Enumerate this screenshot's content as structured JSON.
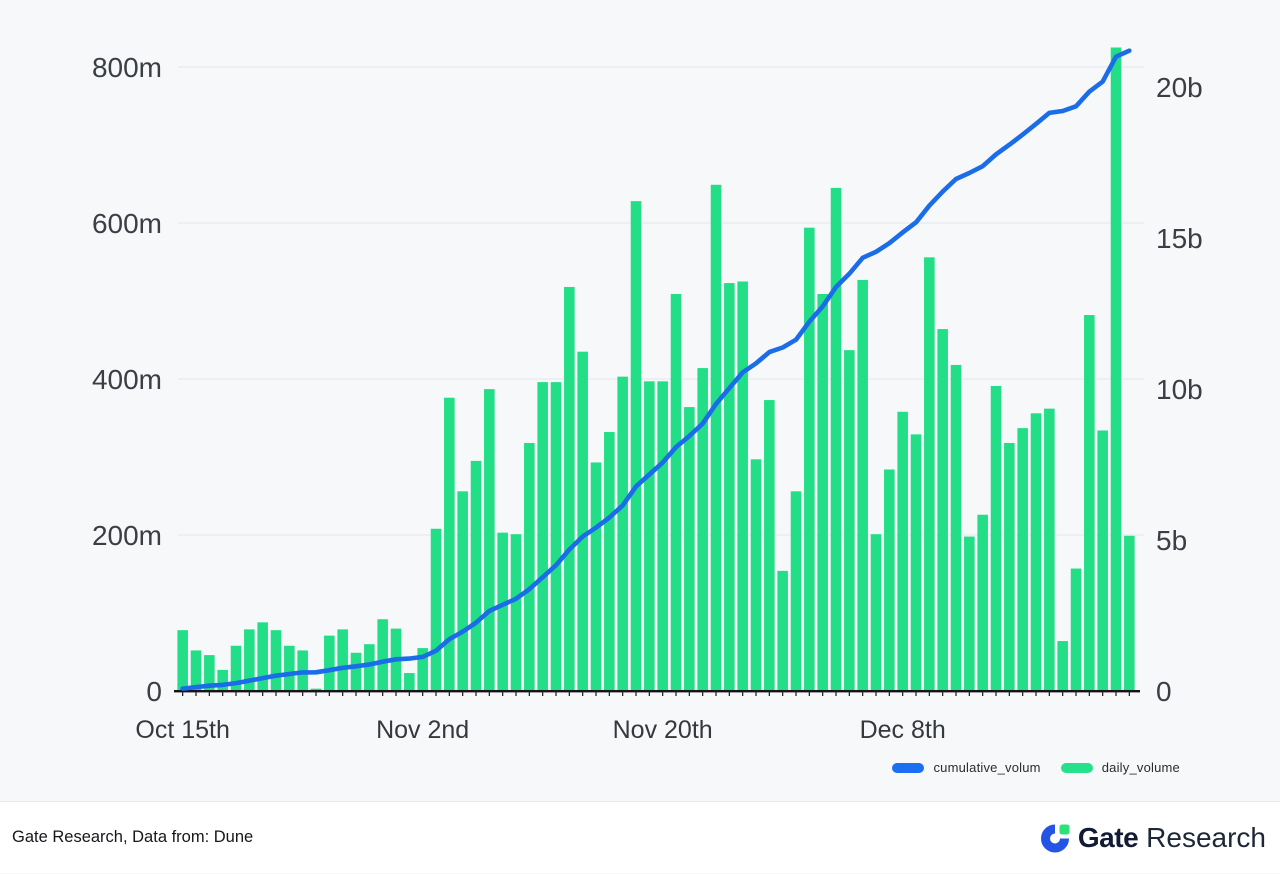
{
  "page": {
    "background": "#f7f8fa"
  },
  "chart_data": {
    "type": "combo",
    "title": "",
    "x": [
      "Oct 15",
      "Oct 16",
      "Oct 17",
      "Oct 18",
      "Oct 19",
      "Oct 20",
      "Oct 21",
      "Oct 22",
      "Oct 23",
      "Oct 24",
      "Oct 25",
      "Oct 26",
      "Oct 27",
      "Oct 28",
      "Oct 29",
      "Oct 30",
      "Oct 31",
      "Nov 1",
      "Nov 2",
      "Nov 3",
      "Nov 4",
      "Nov 5",
      "Nov 6",
      "Nov 7",
      "Nov 8",
      "Nov 9",
      "Nov 10",
      "Nov 11",
      "Nov 12",
      "Nov 13",
      "Nov 14",
      "Nov 15",
      "Nov 16",
      "Nov 17",
      "Nov 18",
      "Nov 19",
      "Nov 20",
      "Nov 21",
      "Nov 22",
      "Nov 23",
      "Nov 24",
      "Nov 25",
      "Nov 26",
      "Nov 27",
      "Nov 28",
      "Nov 29",
      "Nov 30",
      "Dec 1",
      "Dec 2",
      "Dec 3",
      "Dec 4",
      "Dec 5",
      "Dec 6",
      "Dec 7",
      "Dec 8",
      "Dec 9",
      "Dec 10",
      "Dec 11",
      "Dec 12",
      "Dec 13",
      "Dec 14",
      "Dec 15",
      "Dec 16",
      "Dec 17",
      "Dec 18",
      "Dec 19",
      "Dec 20",
      "Dec 21",
      "Dec 22",
      "Dec 23",
      "Dec 24",
      "Dec 25"
    ],
    "series": [
      {
        "name": "daily_volume",
        "kind": "bar",
        "axis": "left",
        "unit": "millions",
        "color": "#21DE87",
        "values": [
          78,
          52,
          46,
          27,
          58,
          79,
          88,
          78,
          58,
          52,
          3,
          71,
          79,
          49,
          60,
          92,
          80,
          23,
          55,
          208,
          376,
          256,
          295,
          387,
          203,
          201,
          318,
          396,
          396,
          518,
          435,
          293,
          332,
          403,
          628,
          397,
          397,
          509,
          364,
          414,
          649,
          523,
          525,
          297,
          373,
          154,
          256,
          594,
          509,
          645,
          437,
          527,
          201,
          284,
          358,
          329,
          556,
          464,
          418,
          198,
          226,
          391,
          318,
          337,
          356,
          362,
          64,
          157,
          482,
          334,
          825,
          199
        ]
      },
      {
        "name": "cumulative_volum",
        "kind": "line",
        "axis": "right",
        "unit": "millions",
        "color": "#1B6CE9",
        "values": [
          78,
          130,
          176,
          203,
          261,
          340,
          428,
          506,
          564,
          616,
          619,
          690,
          769,
          818,
          878,
          970,
          1050,
          1073,
          1128,
          1336,
          1712,
          1968,
          2263,
          2650,
          2853,
          3054,
          3372,
          3768,
          4164,
          4682,
          5117,
          5410,
          5742,
          6145,
          6773,
          7170,
          7567,
          8076,
          8440,
          8854,
          9503,
          10026,
          10551,
          10848,
          11221,
          11375,
          11631,
          12225,
          12734,
          13379,
          13816,
          14343,
          14544,
          14828,
          15186,
          15515,
          16071,
          16535,
          16953,
          17151,
          17377,
          17768,
          18086,
          18423,
          18779,
          19141,
          19205,
          19362,
          19844,
          20178,
          21003,
          21202
        ]
      }
    ],
    "left_axis": {
      "unit": "m",
      "range": [
        0,
        830
      ],
      "ticks": [
        {
          "value": 0,
          "label": "0"
        },
        {
          "value": 200,
          "label": "200m"
        },
        {
          "value": 400,
          "label": "400m"
        },
        {
          "value": 600,
          "label": "600m"
        },
        {
          "value": 800,
          "label": "800m"
        }
      ]
    },
    "right_axis": {
      "unit": "b",
      "range": [
        0,
        21200
      ],
      "ticks": [
        {
          "value": 0,
          "label": "0"
        },
        {
          "value": 5000,
          "label": "5b"
        },
        {
          "value": 10000,
          "label": "10b"
        },
        {
          "value": 15000,
          "label": "15b"
        },
        {
          "value": 20000,
          "label": "20b"
        }
      ]
    },
    "x_ticks": [
      {
        "index": 0,
        "label": "Oct 15th"
      },
      {
        "index": 18,
        "label": "Nov 2nd"
      },
      {
        "index": 36,
        "label": "Nov 20th"
      },
      {
        "index": 54,
        "label": "Dec 8th"
      }
    ],
    "legend": [
      {
        "label": "cumulative_volum",
        "color": "#1C6FF1"
      },
      {
        "label": "daily_volume",
        "color": "#27E08B"
      }
    ],
    "grid": "horizontal",
    "legend_position": "bottom-right",
    "colors": {
      "grid": "#ececf0",
      "axis_text": "#3b3e44",
      "baseline": "#141519"
    }
  },
  "footer": {
    "source_text": "Gate Research, Data from: Dune",
    "logo": {
      "brand": "Gate",
      "suffix": "Research",
      "icon_ring_color": "#2354E6",
      "icon_square_color": "#2BE379"
    }
  }
}
